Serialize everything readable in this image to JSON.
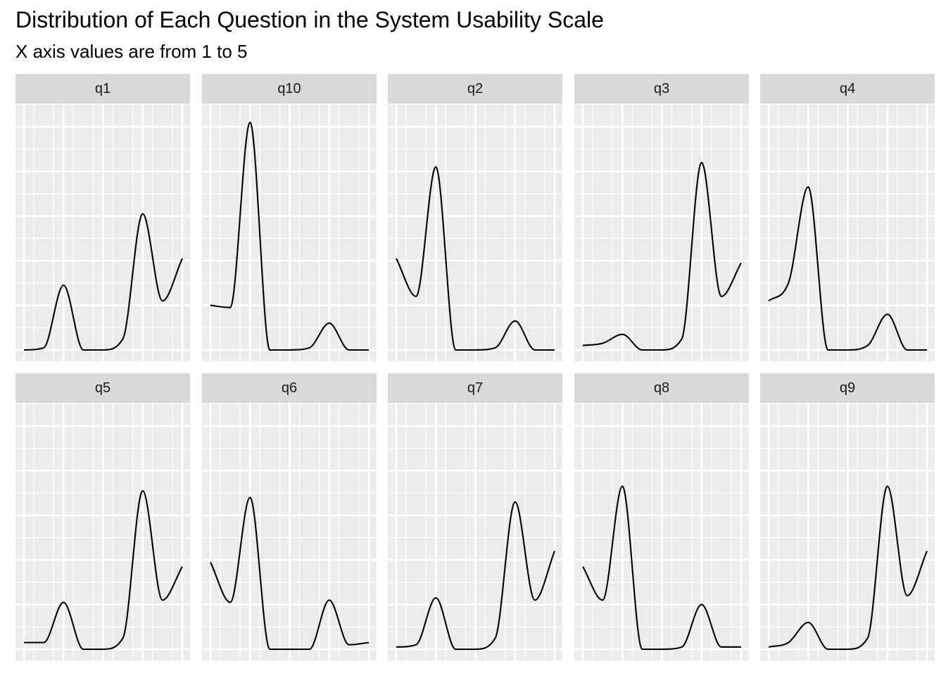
{
  "chart": {
    "title": "Distribution of Each Question in the System Usability Scale",
    "subtitle": "X axis values are from 1 to 5"
  },
  "chart_data": {
    "type": "density",
    "title": "Distribution of Each Question in the System Usability Scale",
    "subtitle": "X axis values are from 1 to 5",
    "xlim": [
      1,
      5
    ],
    "grid": true,
    "facets": [
      {
        "label": "q1",
        "x": [
          1,
          1.5,
          2,
          2.5,
          3,
          3.5,
          4,
          4.5,
          5
        ],
        "density": [
          0.0,
          0.01,
          0.29,
          0.0,
          0.0,
          0.05,
          0.61,
          0.22,
          0.41
        ]
      },
      {
        "label": "q10",
        "x": [
          1,
          1.5,
          2,
          2.5,
          3,
          3.5,
          4,
          4.5,
          5
        ],
        "density": [
          0.2,
          0.19,
          1.02,
          0.0,
          0.0,
          0.01,
          0.12,
          0.0,
          0.0
        ]
      },
      {
        "label": "q2",
        "x": [
          1,
          1.5,
          2,
          2.5,
          3,
          3.5,
          4,
          4.5,
          5
        ],
        "density": [
          0.41,
          0.24,
          0.82,
          0.0,
          0.0,
          0.01,
          0.13,
          0.0,
          0.0
        ]
      },
      {
        "label": "q3",
        "x": [
          1,
          1.5,
          2,
          2.5,
          3,
          3.5,
          4,
          4.5,
          5
        ],
        "density": [
          0.02,
          0.03,
          0.07,
          0.0,
          0.0,
          0.05,
          0.84,
          0.24,
          0.39
        ]
      },
      {
        "label": "q4",
        "x": [
          1,
          1.5,
          2,
          2.5,
          3,
          3.5,
          4,
          4.5,
          5
        ],
        "density": [
          0.22,
          0.3,
          0.73,
          0.0,
          0.0,
          0.02,
          0.16,
          0.0,
          0.0
        ]
      },
      {
        "label": "q5",
        "x": [
          1,
          1.5,
          2,
          2.5,
          3,
          3.5,
          4,
          4.5,
          5
        ],
        "density": [
          0.03,
          0.03,
          0.21,
          0.0,
          0.0,
          0.05,
          0.71,
          0.22,
          0.37
        ]
      },
      {
        "label": "q6",
        "x": [
          1,
          1.5,
          2,
          2.5,
          3,
          3.5,
          4,
          4.5,
          5
        ],
        "density": [
          0.39,
          0.21,
          0.68,
          0.0,
          0.0,
          0.0,
          0.22,
          0.02,
          0.03
        ]
      },
      {
        "label": "q7",
        "x": [
          1,
          1.5,
          2,
          2.5,
          3,
          3.5,
          4,
          4.5,
          5
        ],
        "density": [
          0.01,
          0.02,
          0.23,
          0.0,
          0.0,
          0.05,
          0.66,
          0.22,
          0.44
        ]
      },
      {
        "label": "q8",
        "x": [
          1,
          1.5,
          2,
          2.5,
          3,
          3.5,
          4,
          4.5,
          5
        ],
        "density": [
          0.37,
          0.22,
          0.73,
          0.0,
          0.0,
          0.01,
          0.2,
          0.01,
          0.01
        ]
      },
      {
        "label": "q9",
        "x": [
          1,
          1.5,
          2,
          2.5,
          3,
          3.5,
          4,
          4.5,
          5
        ],
        "density": [
          0.01,
          0.03,
          0.12,
          0.0,
          0.0,
          0.05,
          0.73,
          0.24,
          0.44
        ]
      }
    ]
  }
}
